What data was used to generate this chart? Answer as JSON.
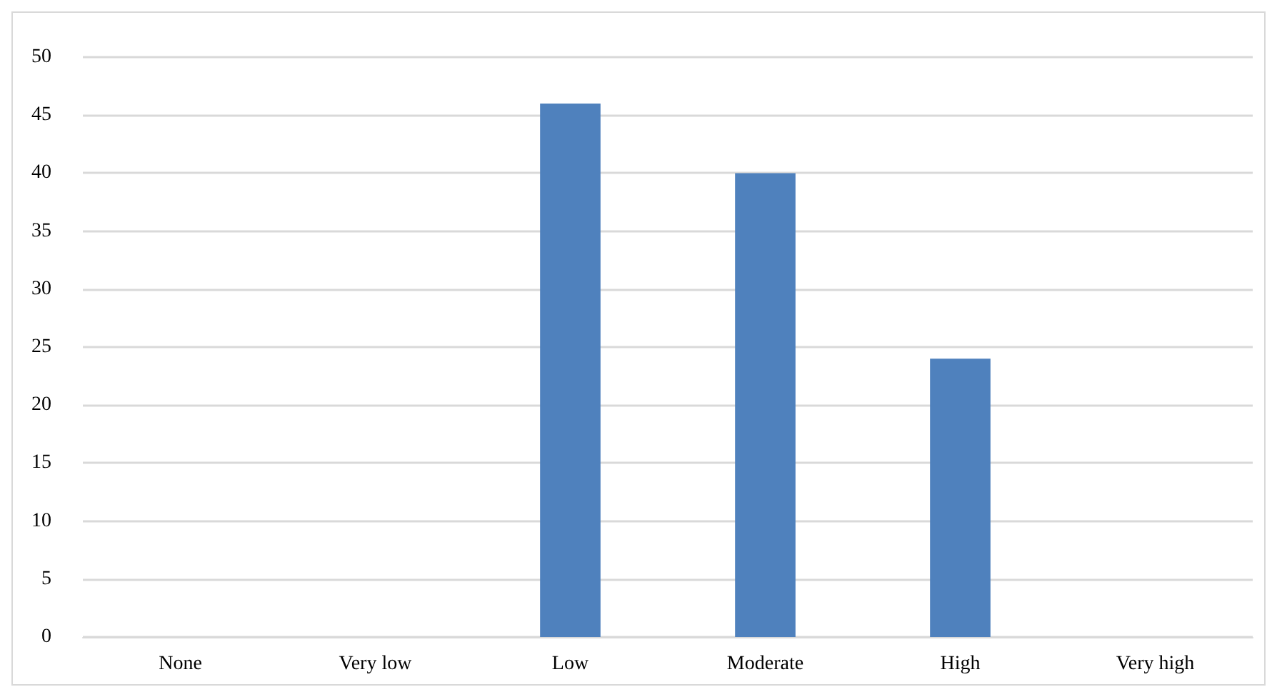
{
  "chart_data": {
    "type": "bar",
    "categories": [
      "None",
      "Very low",
      "Low",
      "Moderate",
      "High",
      "Very high"
    ],
    "values": [
      0,
      0,
      46,
      40,
      24,
      0
    ],
    "color": "#4f81bd",
    "ylim": [
      0,
      50
    ],
    "yticks": [
      0,
      5,
      10,
      15,
      20,
      25,
      30,
      35,
      40,
      45,
      50
    ],
    "grid": "y"
  }
}
